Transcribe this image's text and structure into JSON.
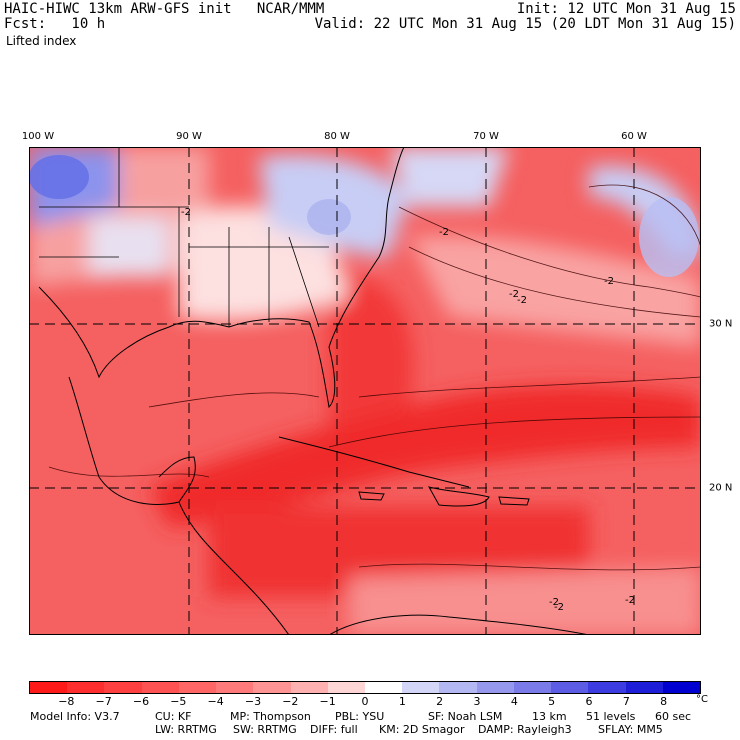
{
  "header": {
    "model_line": "HAIC-HIWC 13km ARW-GFS init   NCAR/MMM",
    "forecast_line": "Fcst:   10 h",
    "field_name": "Lifted index",
    "init_line": "Init: 12 UTC Mon 31 Aug 15",
    "valid_line": "Valid: 22 UTC Mon 31 Aug 15 (20 LDT Mon 31 Aug 15)"
  },
  "map": {
    "longitude_labels": [
      "100 W",
      "90 W",
      "80 W",
      "70 W",
      "60 W"
    ],
    "latitude_labels": [
      "30 N",
      "20 N"
    ],
    "contour_labels": [
      "-2",
      "-2",
      "-2",
      "-2",
      "-2",
      "-2",
      "-2",
      "-2"
    ],
    "colors": {
      "strong_negative": "#f02a2a",
      "negative": "#f56060",
      "weak_negative": "#f9a3a3",
      "near_zero": "#fde0e0",
      "positive": "#c8cdf5",
      "strong_positive": "#6470e8"
    }
  },
  "colorbar": {
    "unit": "°C",
    "labels": [
      "−8",
      "−7",
      "−6",
      "−5",
      "−4",
      "−3",
      "−2",
      "−1",
      "0",
      "1",
      "2",
      "3",
      "4",
      "5",
      "6",
      "7",
      "8"
    ],
    "colors": [
      "#ff1a1a",
      "#ff2e2e",
      "#ff4040",
      "#ff5252",
      "#ff6666",
      "#ff7a7a",
      "#ff9494",
      "#ffb0b0",
      "#ffd6d6",
      "#ffffff",
      "#d4d6f8",
      "#b4b8f2",
      "#9698ee",
      "#7a7ae8",
      "#5c5ce4",
      "#3c3ce0",
      "#1e1ed8",
      "#0000d0"
    ]
  },
  "footer": {
    "row1": [
      {
        "text": "Model Info: V3.7"
      },
      {
        "text": "CU: KF"
      },
      {
        "text": "MP: Thompson"
      },
      {
        "text": "PBL: YSU"
      },
      {
        "text": "SF: Noah LSM"
      },
      {
        "text": "13 km"
      },
      {
        "text": "51 levels"
      },
      {
        "text": "60 sec"
      }
    ],
    "row2": [
      {
        "text": "LW: RRTMG"
      },
      {
        "text": "SW: RRTMG"
      },
      {
        "text": "DIFF: full"
      },
      {
        "text": "KM: 2D Smagor"
      },
      {
        "text": "DAMP: Rayleigh3"
      },
      {
        "text": "SFLAY: MM5"
      }
    ]
  }
}
